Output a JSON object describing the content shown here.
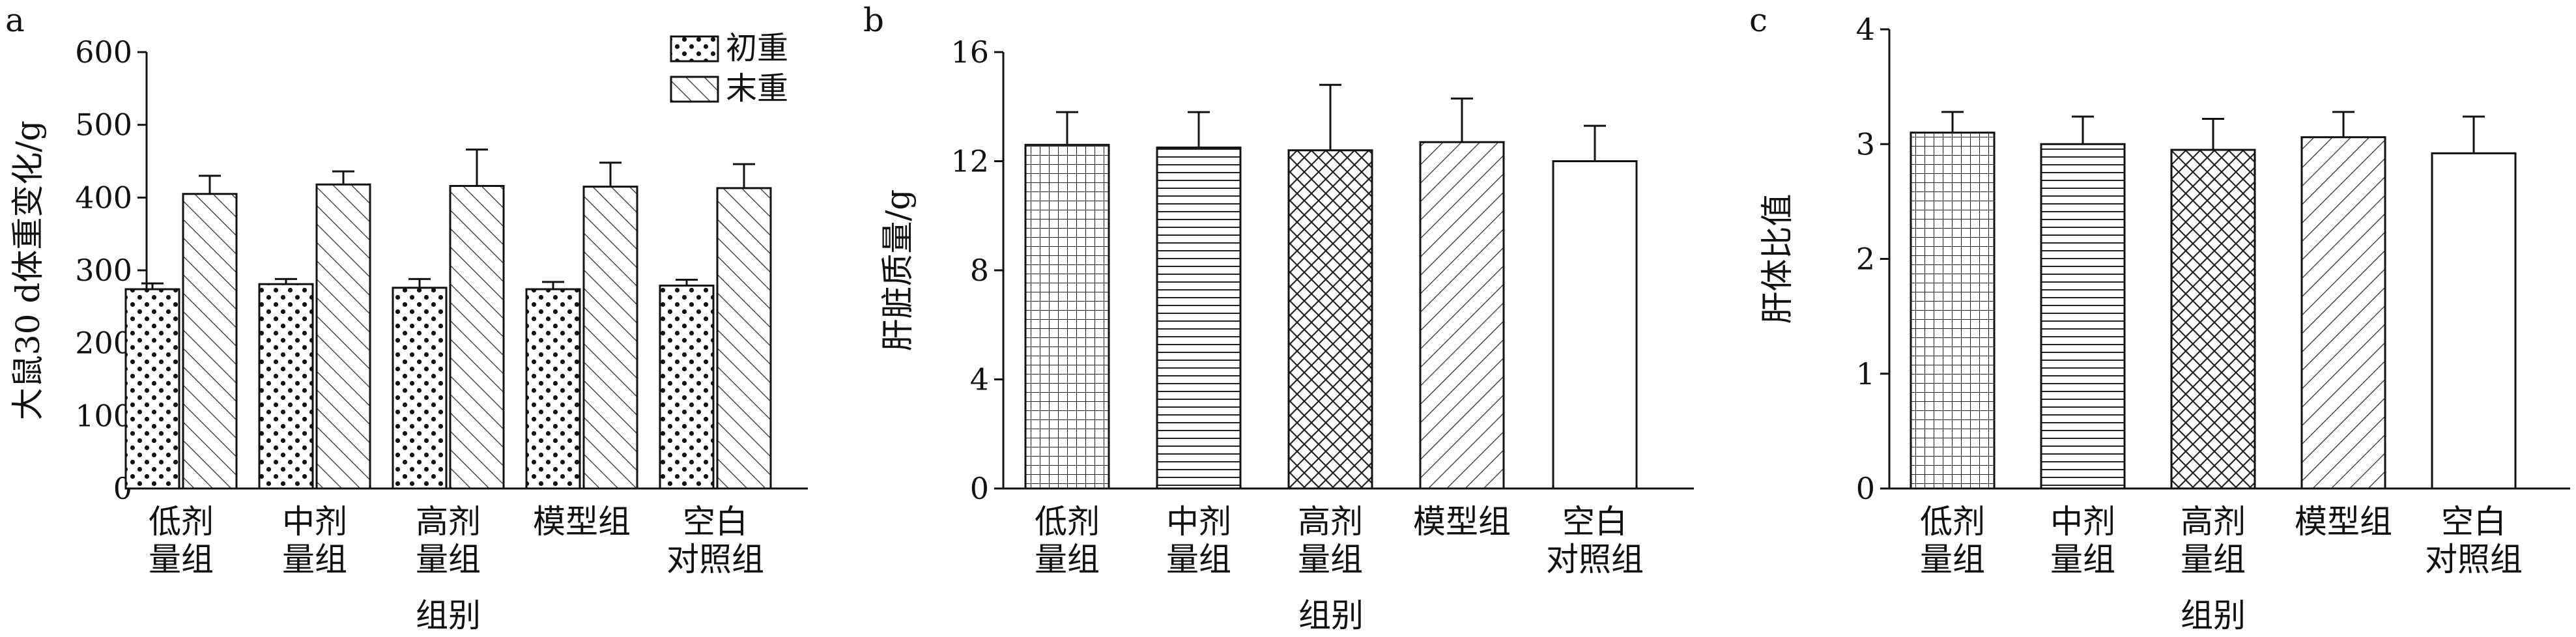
{
  "chart_data": [
    {
      "panel": "a",
      "type": "bar",
      "categories": [
        [
          "低剂",
          "量组"
        ],
        [
          "中剂",
          "量组"
        ],
        [
          "高剂",
          "量组"
        ],
        [
          "模型组"
        ],
        [
          "空白",
          "对照组"
        ]
      ],
      "xlabel": "组别",
      "ylabel": "大鼠30 d体重变化/g",
      "ylim": [
        0,
        600
      ],
      "yticks": [
        0,
        100,
        200,
        300,
        400,
        500,
        600
      ],
      "legend_position": "top-right",
      "series": [
        {
          "name": "初重",
          "pattern": "dots",
          "values": [
            274,
            281,
            276,
            274,
            279
          ],
          "errors": [
            8,
            7,
            12,
            10,
            8
          ]
        },
        {
          "name": "末重",
          "pattern": "diag-back",
          "values": [
            405,
            418,
            416,
            415,
            413
          ],
          "errors": [
            25,
            18,
            50,
            33,
            33
          ]
        }
      ]
    },
    {
      "panel": "b",
      "type": "bar",
      "categories": [
        [
          "低剂",
          "量组"
        ],
        [
          "中剂",
          "量组"
        ],
        [
          "高剂",
          "量组"
        ],
        [
          "模型组"
        ],
        [
          "空白",
          "对照组"
        ]
      ],
      "xlabel": "组别",
      "ylabel": "肝脏质量/g",
      "ylim": [
        0,
        16
      ],
      "yticks": [
        0,
        4,
        8,
        12,
        16
      ],
      "series": [
        {
          "patterns": [
            "grid",
            "horizontal",
            "crosshatch",
            "diag-fwd",
            "none"
          ],
          "values": [
            12.6,
            12.5,
            12.4,
            12.7,
            12.0
          ],
          "errors": [
            1.2,
            1.3,
            2.4,
            1.6,
            1.3
          ]
        }
      ]
    },
    {
      "panel": "c",
      "type": "bar",
      "categories": [
        [
          "低剂",
          "量组"
        ],
        [
          "中剂",
          "量组"
        ],
        [
          "高剂",
          "量组"
        ],
        [
          "模型组"
        ],
        [
          "空白",
          "对照组"
        ]
      ],
      "xlabel": "组别",
      "ylabel": "肝体比值",
      "ylim": [
        0,
        4
      ],
      "yticks": [
        0,
        1,
        2,
        3,
        4
      ],
      "series": [
        {
          "patterns": [
            "grid",
            "horizontal",
            "crosshatch",
            "diag-fwd",
            "none"
          ],
          "values": [
            3.1,
            3.0,
            2.95,
            3.06,
            2.92
          ],
          "errors": [
            0.18,
            0.24,
            0.27,
            0.22,
            0.32
          ]
        }
      ]
    }
  ]
}
